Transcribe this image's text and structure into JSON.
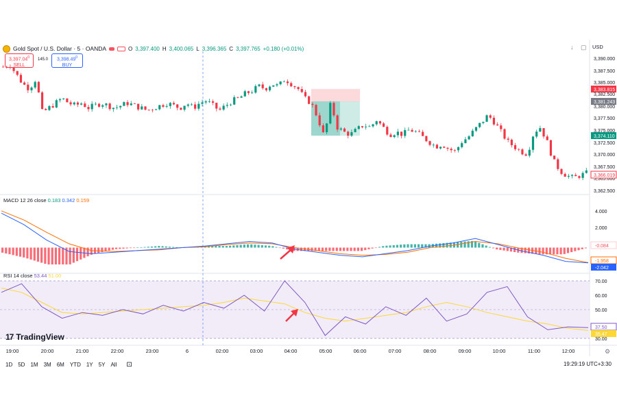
{
  "header": {
    "symbol": "Gold Spot / U.S. Dollar · 5 · OANDA",
    "o_label": "O",
    "o_value": "3,397.400",
    "h_label": "H",
    "h_value": "3,400.065",
    "l_label": "L",
    "l_value": "3,396.365",
    "c_label": "C",
    "c_value": "3,397.765",
    "change": "+0.180 (+0.01%)"
  },
  "trade": {
    "sell_price": "3,397.04",
    "sell_sup": "0",
    "sell_label": "SELL",
    "spread": "145.0",
    "buy_price": "3,398.49",
    "buy_sup": "0",
    "buy_label": "BUY"
  },
  "currency": "USD",
  "price_axis": {
    "ticks": [
      "3,390.000",
      "3,387.500",
      "3,385.000",
      "3,382.500",
      "3,380.000",
      "3,377.500",
      "3,375.000",
      "3,372.500",
      "3,370.000",
      "3,367.500",
      "3,365.000",
      "3,362.500"
    ],
    "tag_stop": "3,383.815",
    "tag_last": "3,381.243",
    "tag_target": "3,374.110",
    "tag_current": "3,366.019"
  },
  "macd": {
    "label": "MACD 12 26 close",
    "v1": "0.183",
    "v2": "0.342",
    "v3": "0.159",
    "ticks": [
      "4.000",
      "2.000"
    ],
    "tag_hist": "-0.084",
    "tag_signal": "-1.958",
    "tag_macd": "-2.042"
  },
  "rsi": {
    "label": "RSI 14 close",
    "v1": "53.44",
    "v2": "51.00",
    "ticks": [
      "70.00",
      "60.00",
      "50.00",
      "40.00",
      "30.00"
    ],
    "tag_rsi": "37.50",
    "tag_ma": "35.47"
  },
  "time_axis": [
    "19:00",
    "20:00",
    "21:00",
    "22:00",
    "23:00",
    "6",
    "02:00",
    "03:00",
    "04:00",
    "05:00",
    "06:00",
    "07:00",
    "08:00",
    "09:00",
    "10:00",
    "11:00",
    "12:00"
  ],
  "timeframes": [
    "1D",
    "5D",
    "1M",
    "3M",
    "6M",
    "YTD",
    "1Y",
    "5Y",
    "All"
  ],
  "clock": "19:29:19 UTC+3:30",
  "logo": "TradingView",
  "colors": {
    "up": "#089981",
    "down": "#f23645",
    "macd_line": "#2962ff",
    "signal_line": "#ff6d00",
    "rsi_line": "#7e57c2",
    "rsi_ma": "#fdd835",
    "rsi_band": "#ede7f6"
  },
  "chart_data": {
    "type": "candlestick",
    "title": "Gold Spot / U.S. Dollar · 5 · OANDA",
    "x": [
      "19:00",
      "20:00",
      "21:00",
      "22:00",
      "23:00",
      "6",
      "02:00",
      "03:00",
      "04:00",
      "05:00",
      "06:00",
      "07:00",
      "08:00",
      "09:00",
      "10:00",
      "11:00",
      "12:00"
    ],
    "close_path": [
      3388.5,
      3389,
      3387,
      3385,
      3384,
      3386,
      3379,
      3380,
      3381,
      3382,
      3381,
      3380.5,
      3381,
      3380,
      3380.5,
      3381,
      3380.5,
      3380,
      3380.5,
      3381,
      3380.5,
      3380,
      3379.5,
      3380,
      3380.5,
      3381,
      3380.5,
      3380,
      3381,
      3380,
      3381,
      3381.5,
      3380.5,
      3379.5,
      3380.5,
      3381.5,
      3382,
      3383,
      3383.5,
      3384.5,
      3384,
      3385,
      3384.5,
      3386,
      3385,
      3384,
      3382,
      3381,
      3378,
      3374,
      3381,
      3376,
      3375,
      3374.5,
      3375.5,
      3376.5,
      3376,
      3377.5,
      3376,
      3374.5,
      3375,
      3374.5,
      3375.5,
      3375,
      3374,
      3373,
      3372,
      3372.5,
      3371.5,
      3371,
      3373,
      3374,
      3375.5,
      3377,
      3378.5,
      3377,
      3375,
      3373,
      3372,
      3371,
      3370.5,
      3375,
      3376,
      3373,
      3369,
      3367,
      3366,
      3365.5,
      3366,
      3366.5
    ],
    "ylim": [
      3362.5,
      3391
    ],
    "overlays": {
      "stop_zone": [
        3381.8,
        3383.8
      ],
      "target_zone": [
        3374.1,
        3381.8
      ]
    },
    "macd": {
      "macd_line": [
        4.5,
        3,
        1,
        -0.5,
        -0.8,
        -0.6,
        -0.4,
        -0.2,
        0,
        0.2,
        0.5,
        0.8,
        0.6,
        -0.2,
        -0.6,
        -1,
        -1.2,
        -0.8,
        -0.4,
        0.2,
        0.6,
        1.2,
        0.4,
        -0.4,
        -1,
        -1.8,
        -2.0
      ],
      "signal_line": [
        4.8,
        3.6,
        2,
        0.5,
        -0.4,
        -0.5,
        -0.4,
        -0.3,
        0,
        0.1,
        0.4,
        0.6,
        0.5,
        0,
        -0.4,
        -0.8,
        -1,
        -0.9,
        -0.6,
        0,
        0.3,
        0.8,
        0.5,
        -0.1,
        -0.6,
        -1.4,
        -1.96
      ],
      "ylim": [
        -3,
        5.5
      ]
    },
    "rsi": {
      "rsi_line": [
        62,
        68,
        52,
        44,
        48,
        46,
        50,
        47,
        53,
        49,
        55,
        51,
        60,
        49,
        70,
        55,
        32,
        45,
        40,
        52,
        46,
        58,
        42,
        47,
        62,
        66,
        45,
        36,
        38,
        37.5
      ],
      "ma_line": [
        65,
        62,
        55,
        48,
        47,
        48,
        49,
        50,
        51,
        52,
        53,
        55,
        58,
        56,
        54,
        48,
        44,
        42,
        44,
        46,
        48,
        52,
        55,
        52,
        48,
        45,
        42,
        40,
        37,
        35.5
      ],
      "ylim": [
        30,
        72
      ]
    }
  }
}
